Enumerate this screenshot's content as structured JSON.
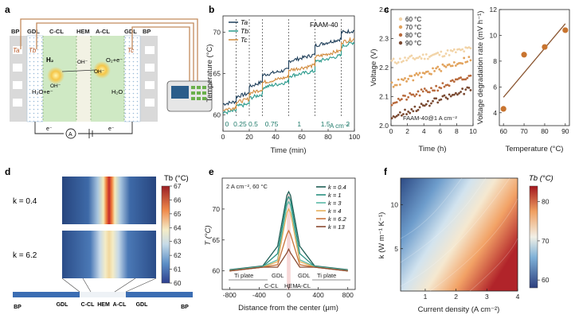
{
  "figure": {
    "panel_labels": [
      "a",
      "b",
      "c",
      "d",
      "e",
      "f"
    ]
  },
  "panel_a": {
    "regions": [
      "BP",
      "GDL",
      "C-CL",
      "HEM",
      "A-CL",
      "GDL",
      "BP"
    ],
    "Ta": "Ta",
    "Tb": "Tb",
    "Tc": "Tc",
    "cathode_rxn": "H₂O+e⁻",
    "cathode_gas": "H₂",
    "anode_rxn": "O₂+e⁻",
    "anode_water": "H₂O",
    "ion_left": "OH⁻",
    "ion_mid": "OH⁻",
    "ion_right": "OH⁻",
    "electron_left": "e⁻",
    "electron_right": "e⁻",
    "ammeter": "A"
  },
  "chart_data": [
    {
      "panel": "b",
      "type": "line",
      "xlabel": "Time (min)",
      "ylabel": "Temperature (°C)",
      "xlim": [
        0,
        100
      ],
      "ylim": [
        58,
        72
      ],
      "xticks": [
        0,
        20,
        40,
        60,
        80,
        100
      ],
      "yticks": [
        60,
        65,
        70
      ],
      "tag": "FAAM-40",
      "step_times": [
        10,
        20,
        30,
        50,
        70,
        90
      ],
      "step_labels": [
        "0",
        "0.25",
        "0.5",
        "0.75",
        "1",
        "1.5",
        "2"
      ],
      "step_label_x": [
        3,
        13,
        23,
        37,
        58,
        78,
        95
      ],
      "unit_label": "A cm⁻²",
      "series": [
        {
          "name": "Ta",
          "color": "#1f3f5a",
          "x": [
            0,
            10,
            10,
            20,
            20,
            30,
            30,
            50,
            50,
            70,
            70,
            90,
            90,
            100
          ],
          "y": [
            61.3,
            61.6,
            62.2,
            62.6,
            63.4,
            64.0,
            64.8,
            65.5,
            66.5,
            67.3,
            68.4,
            69.2,
            70.0,
            70.2
          ]
        },
        {
          "name": "Tb",
          "color": "#2b9a8c",
          "x": [
            0,
            10,
            10,
            20,
            20,
            30,
            30,
            50,
            50,
            70,
            70,
            90,
            90,
            100
          ],
          "y": [
            60.2,
            60.5,
            61.0,
            61.3,
            62.0,
            62.5,
            63.3,
            64.0,
            64.7,
            65.3,
            66.4,
            67.2,
            68.3,
            68.8
          ]
        },
        {
          "name": "Tc",
          "color": "#d18a3c",
          "x": [
            0,
            10,
            10,
            20,
            20,
            30,
            30,
            50,
            50,
            70,
            70,
            90,
            90,
            100
          ],
          "y": [
            60.6,
            60.9,
            61.5,
            61.9,
            62.6,
            63.1,
            63.9,
            64.6,
            65.4,
            66.0,
            67.0,
            67.8,
            68.8,
            69.2
          ]
        }
      ]
    },
    {
      "panel": "c-left",
      "type": "scatter",
      "xlabel": "Time (h)",
      "ylabel": "Voltage (V)",
      "xlim": [
        0,
        10
      ],
      "ylim": [
        2.0,
        2.4
      ],
      "xticks": [
        0,
        2,
        4,
        6,
        8,
        10
      ],
      "yticks": [
        2.0,
        2.1,
        2.2,
        2.3,
        2.4
      ],
      "annotation": "FAAM-40@1 A cm⁻²",
      "series": [
        {
          "name": "60 °C",
          "color": "#f2d4a8",
          "start": 2.22,
          "end": 2.265
        },
        {
          "name": "70 °C",
          "color": "#e2a35d",
          "start": 2.14,
          "end": 2.235
        },
        {
          "name": "80 °C",
          "color": "#b86a3c",
          "start": 2.08,
          "end": 2.17
        },
        {
          "name": "90 °C",
          "color": "#7a4a32",
          "start": 2.03,
          "end": 2.13
        }
      ]
    },
    {
      "panel": "c-right",
      "type": "scatter",
      "xlabel": "Temperature (°C)",
      "ylabel": "Voltage degradation rate (mV h⁻¹)",
      "xlim": [
        58,
        92
      ],
      "ylim": [
        3,
        12
      ],
      "xticks": [
        60,
        70,
        80,
        90
      ],
      "yticks": [
        4,
        6,
        8,
        10,
        12
      ],
      "x": [
        60,
        70,
        80,
        90
      ],
      "y": [
        4.3,
        8.5,
        9.1,
        10.4
      ],
      "fit": [
        [
          60,
          5.2
        ],
        [
          90,
          10.9
        ]
      ]
    },
    {
      "panel": "d",
      "type": "heatmap",
      "colorbar_title": "Tb (°C)",
      "colorbar_ticks": [
        60,
        61,
        62,
        63,
        64,
        65,
        66,
        67
      ],
      "rows": [
        "k = 0.4",
        "k = 6.2"
      ],
      "bottom_labels": [
        "BP",
        "GDL",
        "C-CL",
        "HEM",
        "A-CL",
        "GDL",
        "BP"
      ]
    },
    {
      "panel": "e",
      "type": "line",
      "xlabel": "Distance from the center (μm)",
      "ylabel": "T (°C)",
      "xlim": [
        -900,
        900
      ],
      "ylim": [
        57,
        75
      ],
      "xticks": [
        -800,
        -400,
        0,
        400,
        800
      ],
      "yticks": [
        60,
        65,
        70
      ],
      "condition": "2 A cm⁻², 60 °C",
      "region_labels": [
        "Ti plate",
        "GDL",
        "GDL",
        "Ti plate",
        "C-CL",
        "HEM",
        "A-CL"
      ],
      "series": [
        {
          "name": "k = 0.4",
          "color": "#1f5e55",
          "peak": 72.8,
          "gdl": 64.0,
          "edge": 60.2
        },
        {
          "name": "k = 1",
          "color": "#2a8f80",
          "peak": 72.0,
          "gdl": 62.8,
          "edge": 60.1
        },
        {
          "name": "k = 3",
          "color": "#5ab9a6",
          "peak": 71.2,
          "gdl": 61.8,
          "edge": 60.1
        },
        {
          "name": "k = 4",
          "color": "#e6b05c",
          "peak": 70.0,
          "gdl": 61.5,
          "edge": 60.0
        },
        {
          "name": "k = 6.2",
          "color": "#c8733a",
          "peak": 66.5,
          "gdl": 61.0,
          "edge": 60.0
        },
        {
          "name": "k = 13",
          "color": "#8a4a30",
          "peak": 63.5,
          "gdl": 60.6,
          "edge": 60.0
        }
      ]
    },
    {
      "panel": "f",
      "type": "heatmap",
      "xlabel": "Current density (A cm⁻²)",
      "ylabel": "k (W m⁻¹ K⁻¹)",
      "xlim": [
        0.2,
        4
      ],
      "ylim": [
        0.2,
        13
      ],
      "xticks": [
        1,
        2,
        3,
        4
      ],
      "yticks": [
        5,
        10
      ],
      "colorbar_title": "Tb (°C)",
      "colorbar_ticks": [
        60,
        70,
        80
      ]
    }
  ]
}
